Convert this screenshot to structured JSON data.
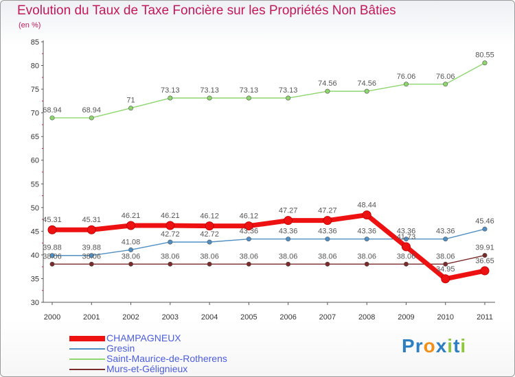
{
  "header": {
    "title": "Evolution du Taux de Taxe Foncière sur les Propriétés Non Bâties",
    "subtitle": "(en %)"
  },
  "chart_data": {
    "type": "line",
    "title": "Evolution du Taux de Taxe Foncière sur les Propriétés Non Bâties",
    "subtitle": "(en %)",
    "xlabel": "",
    "ylabel": "",
    "x": [
      "2000",
      "2001",
      "2002",
      "2003",
      "2004",
      "2005",
      "2006",
      "2007",
      "2008",
      "2009",
      "2010",
      "2011"
    ],
    "ylim": [
      30,
      85
    ],
    "yticks": [
      "30",
      "35",
      "40",
      "45",
      "50",
      "55",
      "60",
      "65",
      "70",
      "75",
      "80",
      "85"
    ],
    "grid": false,
    "legend": "bottom-left",
    "series": [
      {
        "name": "Murs-et-Gélignieux",
        "color": "#7b2a2a",
        "values": [
          38.06,
          38.06,
          38.06,
          38.06,
          38.06,
          38.06,
          38.06,
          38.06,
          38.06,
          38.06,
          38.06,
          39.91
        ],
        "labels": [
          "38.06",
          "38.06",
          "38.06",
          "38.06",
          "38.06",
          "38.06",
          "38.06",
          "38.06",
          "38.06",
          "38.06",
          "38.06",
          "39.91"
        ]
      },
      {
        "name": "Gresin",
        "color": "#4f8fc4",
        "values": [
          39.88,
          39.88,
          41.08,
          42.72,
          42.72,
          43.36,
          43.36,
          43.36,
          43.36,
          43.36,
          43.36,
          45.46
        ],
        "labels": [
          "39.88",
          "39.88",
          "41.08",
          "42.72",
          "42.72",
          "43.36",
          "43.36",
          "43.36",
          "43.36",
          "43.36",
          "43.36",
          "45.46"
        ]
      },
      {
        "name": "Saint-Maurice-de-Rotherens",
        "color": "#8ed66e",
        "values": [
          68.94,
          68.94,
          71,
          73.13,
          73.13,
          73.13,
          73.13,
          74.56,
          74.56,
          76.06,
          76.06,
          80.55
        ],
        "labels": [
          "68.94",
          "68.94",
          "71",
          "73.13",
          "73.13",
          "73.13",
          "73.13",
          "74.56",
          "74.56",
          "76.06",
          "76.06",
          "80.55"
        ]
      },
      {
        "name": "CHAMPAGNEUX",
        "color": "#ee1111",
        "values": [
          45.31,
          45.31,
          46.21,
          46.21,
          46.12,
          46.12,
          47.27,
          47.27,
          48.44,
          41.73,
          34.95,
          36.65
        ],
        "labels": [
          "45.31",
          "45.31",
          "46.21",
          "46.21",
          "46.12",
          "46.12",
          "47.27",
          "47.27",
          "48.44",
          "41.73",
          "34.95",
          "36.65"
        ]
      }
    ],
    "legend_order": [
      "CHAMPAGNEUX",
      "Gresin",
      "Saint-Maurice-de-Rotherens",
      "Murs-et-Gélignieux"
    ]
  },
  "logo": {
    "letters": [
      "P",
      "r",
      "o",
      "x",
      "i",
      "t",
      "i"
    ],
    "colors": [
      "#2d7fc1",
      "#2d7fc1",
      "#f0901a",
      "#2d7fc1",
      "#8cc63f",
      "#2d7fc1",
      "#8cc63f"
    ]
  }
}
